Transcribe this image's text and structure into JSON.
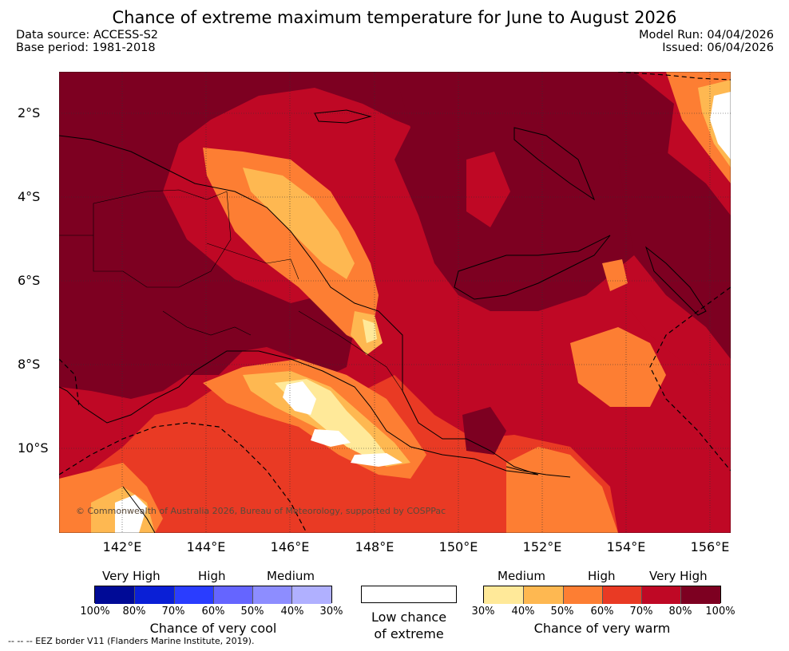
{
  "title": "Chance of extreme maximum temperature for June to August 2026",
  "data_source": "Data source: ACCESS-S2",
  "base_period": "Base period: 1981-2018",
  "model_run": "Model Run: 04/04/2026",
  "issued": "Issued: 06/04/2026",
  "lat_labels": [
    "2°S",
    "4°S",
    "6°S",
    "8°S",
    "10°S"
  ],
  "lon_labels": [
    "142°E",
    "144°E",
    "146°E",
    "148°E",
    "150°E",
    "152°E",
    "154°E",
    "156°E"
  ],
  "copyright": "© Commonwealth of Australia 2026, Bureau of Meteorology, supported by COSPPac",
  "legend": {
    "cool": {
      "levels": [
        "Very High",
        "High",
        "Medium"
      ],
      "ticks": [
        "100%",
        "80%",
        "70%",
        "60%",
        "50%",
        "40%",
        "30%"
      ],
      "caption": "Chance of very cool",
      "colors": [
        "#000a96",
        "#0a1fd6",
        "#2a3dff",
        "#6565ff",
        "#8d8dff",
        "#b0b0ff"
      ]
    },
    "neutral": {
      "caption_line1": "Low chance",
      "caption_line2": "of extreme",
      "color": "#ffffff"
    },
    "warm": {
      "levels": [
        "Medium",
        "High",
        "Very High"
      ],
      "ticks": [
        "30%",
        "40%",
        "50%",
        "60%",
        "70%",
        "80%",
        "100%"
      ],
      "caption": "Chance of very warm",
      "colors": [
        "#ffe999",
        "#feb851",
        "#fd7e33",
        "#e93a24",
        "#bf0825",
        "#7d0021"
      ]
    }
  },
  "footnote": "-- -- -- EEZ border V11 (Flanders Marine Institute, 2019)."
}
